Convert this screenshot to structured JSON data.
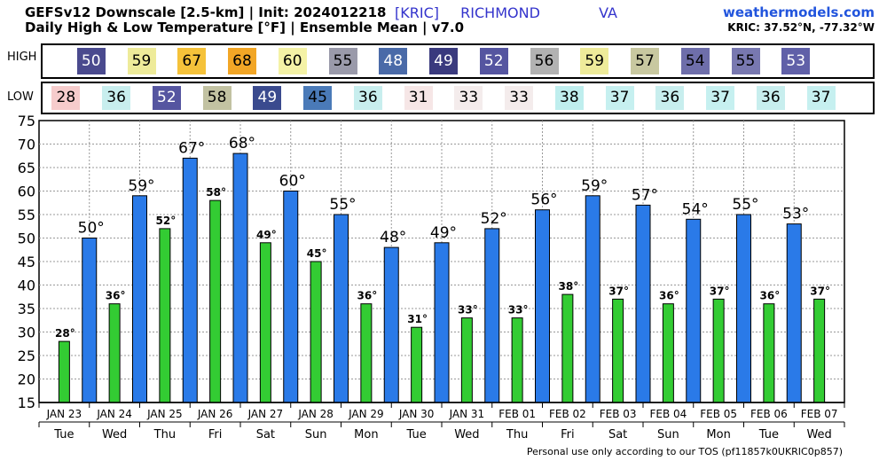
{
  "header": {
    "title_line1": "GEFSv12 Downscale [2.5-km] | Init: 2024012218",
    "title_line2": "Daily High & Low Temperature [°F] | Ensemble Mean | v7.0",
    "station_id": "[KRIC]",
    "station_city": "RICHMOND",
    "station_state": "VA",
    "site": "weathermodels.com",
    "coords": "KRIC: 37.52°N, -77.32°W"
  },
  "rows": {
    "high_label": "HIGH",
    "low_label": "LOW"
  },
  "footer": "Personal use only according to our TOS (pf11857k0UKRIC0p857)",
  "colors": {
    "high_bar": "#2a7ae8",
    "low_bar": "#33cc33",
    "grid": "#999999"
  },
  "high_cells": [
    {
      "value": "50",
      "bg": "#4a4a8e",
      "fg": "#ffffff"
    },
    {
      "value": "59",
      "bg": "#eeeb9a",
      "fg": "#000000"
    },
    {
      "value": "67",
      "bg": "#f5c23a",
      "fg": "#000000"
    },
    {
      "value": "68",
      "bg": "#f2a626",
      "fg": "#000000"
    },
    {
      "value": "60",
      "bg": "#f4f2a6",
      "fg": "#000000"
    },
    {
      "value": "55",
      "bg": "#9a9aaa",
      "fg": "#000000"
    },
    {
      "value": "48",
      "bg": "#4a6aa8",
      "fg": "#ffffff"
    },
    {
      "value": "49",
      "bg": "#3a3a7e",
      "fg": "#ffffff"
    },
    {
      "value": "52",
      "bg": "#5555a0",
      "fg": "#ffffff"
    },
    {
      "value": "56",
      "bg": "#b2b2b2",
      "fg": "#000000"
    },
    {
      "value": "59",
      "bg": "#eeeb9a",
      "fg": "#000000"
    },
    {
      "value": "57",
      "bg": "#c8c8a0",
      "fg": "#000000"
    },
    {
      "value": "54",
      "bg": "#6e6eaa",
      "fg": "#000000"
    },
    {
      "value": "55",
      "bg": "#7878b0",
      "fg": "#000000"
    },
    {
      "value": "53",
      "bg": "#6060a8",
      "fg": "#ffffff"
    }
  ],
  "low_cells": [
    {
      "value": "28",
      "bg": "#f6cccc",
      "fg": "#000000"
    },
    {
      "value": "36",
      "bg": "#c8eeee",
      "fg": "#000000"
    },
    {
      "value": "52",
      "bg": "#5555a0",
      "fg": "#ffffff"
    },
    {
      "value": "58",
      "bg": "#c2c2a2",
      "fg": "#000000"
    },
    {
      "value": "49",
      "bg": "#3a4a8e",
      "fg": "#ffffff"
    },
    {
      "value": "45",
      "bg": "#4a7ab8",
      "fg": "#000000"
    },
    {
      "value": "36",
      "bg": "#c8eeee",
      "fg": "#000000"
    },
    {
      "value": "31",
      "bg": "#f6e6e6",
      "fg": "#000000"
    },
    {
      "value": "33",
      "bg": "#f4ecec",
      "fg": "#000000"
    },
    {
      "value": "33",
      "bg": "#f4ecec",
      "fg": "#000000"
    },
    {
      "value": "38",
      "bg": "#bfeeee",
      "fg": "#000000"
    },
    {
      "value": "37",
      "bg": "#c6f0f0",
      "fg": "#000000"
    },
    {
      "value": "36",
      "bg": "#c8eeee",
      "fg": "#000000"
    },
    {
      "value": "37",
      "bg": "#c6f0f0",
      "fg": "#000000"
    },
    {
      "value": "36",
      "bg": "#c8eeee",
      "fg": "#000000"
    },
    {
      "value": "37",
      "bg": "#c6f0f0",
      "fg": "#000000"
    }
  ],
  "chart_data": {
    "type": "bar",
    "categories": [
      "JAN 23",
      "JAN 24",
      "JAN 25",
      "JAN 26",
      "JAN 27",
      "JAN 28",
      "JAN 29",
      "JAN 30",
      "JAN 31",
      "FEB 01",
      "FEB 02",
      "FEB 03",
      "FEB 04",
      "FEB 05",
      "FEB 06",
      "FEB 07"
    ],
    "weekdays": [
      "Tue",
      "Wed",
      "Thu",
      "Fri",
      "Sat",
      "Sun",
      "Mon",
      "Tue",
      "Wed",
      "Thu",
      "Fri",
      "Sat",
      "Sun",
      "Mon",
      "Tue",
      "Wed"
    ],
    "ylim": [
      15,
      75
    ],
    "yticks": [
      15,
      20,
      25,
      30,
      35,
      40,
      45,
      50,
      55,
      60,
      65,
      70,
      75
    ],
    "grid": true,
    "series": [
      {
        "values": [
          null,
          50,
          59,
          67,
          68,
          60,
          55,
          48,
          49,
          52,
          56,
          59,
          57,
          54,
          55,
          53
        ],
        "labels": [
          "",
          "50°",
          "59°",
          "67°",
          "68°",
          "60°",
          "55°",
          "48°",
          "49°",
          "52°",
          "56°",
          "59°",
          "57°",
          "54°",
          "55°",
          "53°"
        ]
      },
      {
        "values": [
          28,
          36,
          52,
          58,
          49,
          45,
          36,
          31,
          33,
          33,
          38,
          37,
          36,
          37,
          36,
          37
        ],
        "labels": [
          "28°",
          "36°",
          "52°",
          "58°",
          "49°",
          "45°",
          "36°",
          "31°",
          "33°",
          "33°",
          "38°",
          "37°",
          "36°",
          "37°",
          "36°",
          "37°"
        ]
      }
    ]
  }
}
